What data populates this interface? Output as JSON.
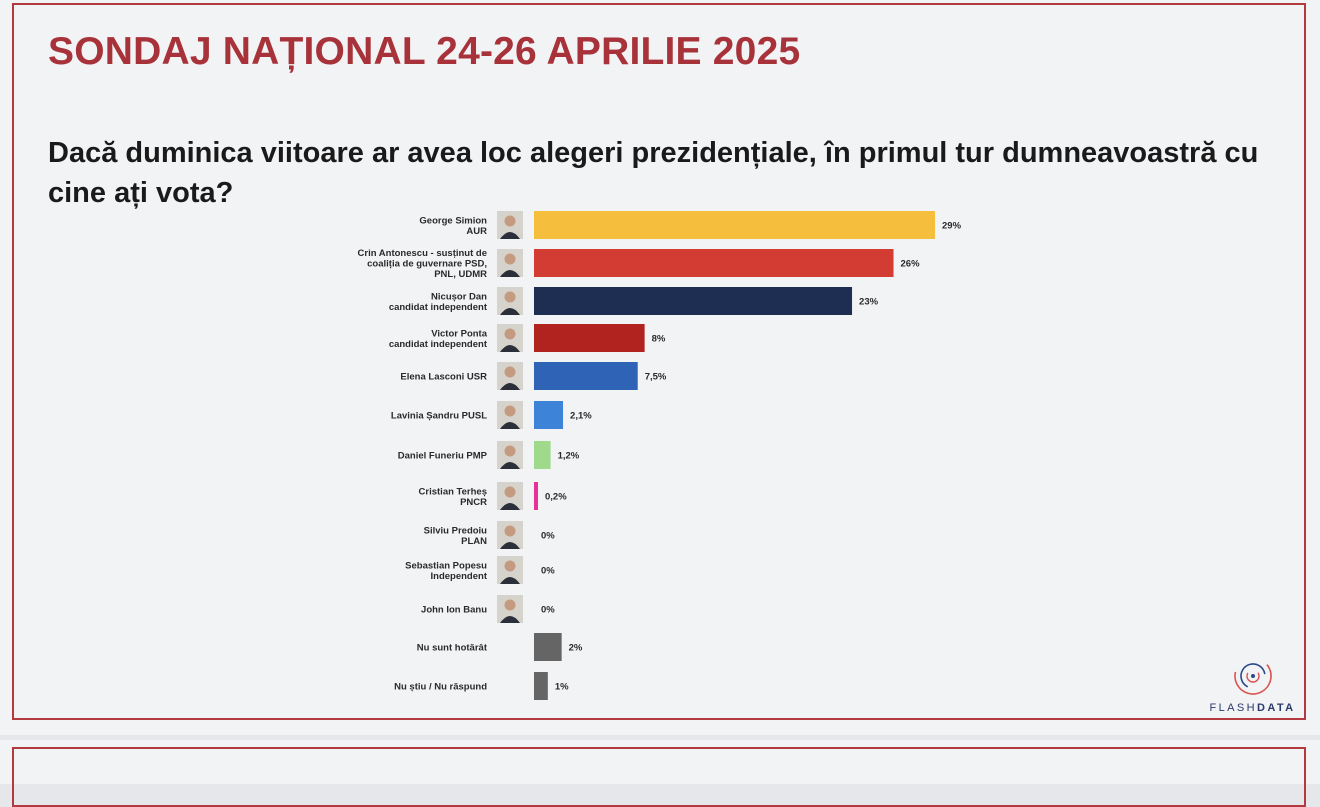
{
  "title": "SONDAJ NAȚIONAL 24-26 APRILIE 2025",
  "question": "Dacă duminica viitoare ar avea loc alegeri prezidențiale, în primul tur dumneavoastră cu cine ați vota?",
  "logo": {
    "part1": "FLASH",
    "part2": "DATA"
  },
  "chart_data": {
    "type": "bar",
    "orientation": "horizontal",
    "categories": [
      [
        "George Simion",
        "AUR"
      ],
      [
        "Crin Antonescu - susținut de",
        "coaliția de guvernare PSD,",
        "PNL, UDMR"
      ],
      [
        "Nicușor Dan",
        "candidat independent"
      ],
      [
        "Victor Ponta",
        "candidat independent"
      ],
      [
        "Elena Lasconi USR"
      ],
      [
        "Lavinia Șandru PUSL"
      ],
      [
        "Daniel Funeriu PMP"
      ],
      [
        "Cristian Terheș",
        "PNCR"
      ],
      [
        "Silviu Predoiu",
        "PLAN"
      ],
      [
        "Sebastian Popesu",
        "Independent"
      ],
      [
        "John Ion Banu"
      ],
      [
        "Nu sunt hotărât"
      ],
      [
        "Nu știu / Nu răspund"
      ]
    ],
    "values": [
      29,
      26,
      23,
      8,
      7.5,
      2.1,
      1.2,
      0.2,
      0,
      0,
      0,
      2,
      1
    ],
    "value_labels": [
      "29%",
      "26%",
      "23%",
      "8%",
      "7,5%",
      "2,1%",
      "1,2%",
      "0,2%",
      "0%",
      "0%",
      "0%",
      "2%",
      "1%"
    ],
    "colors": [
      "#f5be3c",
      "#d23c32",
      "#1e2d52",
      "#b0231e",
      "#2f63b5",
      "#3d84d9",
      "#9fd98c",
      "#e8329a",
      "#666666",
      "#666666",
      "#666666",
      "#656565",
      "#656565"
    ],
    "portraits": [
      true,
      true,
      true,
      true,
      true,
      true,
      true,
      true,
      true,
      true,
      true,
      false,
      false
    ],
    "xlim": [
      0,
      29
    ],
    "grid": false,
    "legend": "none"
  }
}
